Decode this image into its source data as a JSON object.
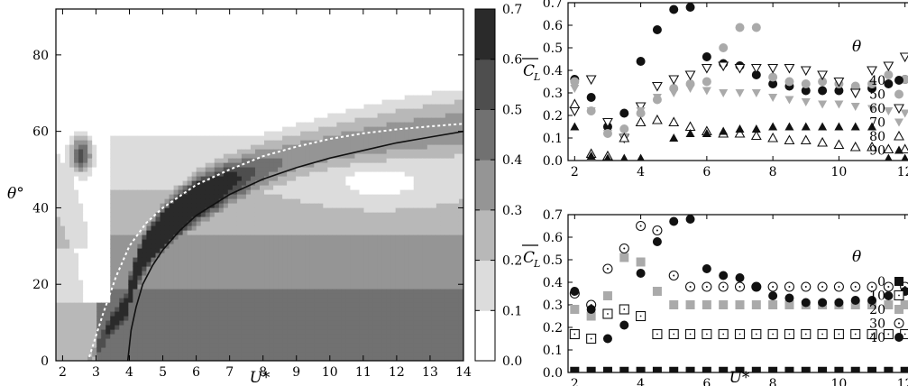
{
  "chart_data": [
    {
      "type": "heatmap",
      "xlabel": "U*",
      "ylabel": "θ°",
      "xlim": [
        1.8,
        14
      ],
      "ylim": [
        0,
        92
      ],
      "xticks": [
        "2",
        "3",
        "4",
        "5",
        "6",
        "7",
        "8",
        "9",
        "10",
        "11",
        "12",
        "13",
        "14"
      ],
      "yticks": [
        "0",
        "20",
        "40",
        "60",
        "80"
      ],
      "colorbar": {
        "ticks": [
          "0.0",
          "0.1",
          "0.2",
          "0.3",
          "0.4",
          "0.5",
          "0.6",
          "0.7"
        ],
        "range": [
          0,
          0.7
        ],
        "colormap": "gray (white = 0, black = 0.7)"
      },
      "curves": [
        {
          "style": "dashed-white",
          "x": [
            2.8,
            3.2,
            3.6,
            4.0,
            4.5,
            5.0,
            6.0,
            7.0,
            8.0,
            9.0,
            10.0,
            11.0,
            12.0,
            13.0,
            14.0
          ],
          "y": [
            1,
            12,
            22,
            30,
            36,
            40,
            46,
            50,
            53.5,
            56,
            58,
            59.5,
            60.5,
            61.3,
            62
          ]
        },
        {
          "style": "solid-black",
          "x": [
            3.95,
            4.05,
            4.2,
            4.4,
            4.7,
            5.0,
            5.5,
            6.0,
            7.0,
            8.0,
            9.0,
            10.0,
            11.0,
            12.0,
            13.0,
            14.0
          ],
          "y": [
            0,
            8,
            14,
            20,
            25,
            29,
            34,
            38,
            43.5,
            47.5,
            50.5,
            53,
            55,
            57,
            58.5,
            60
          ]
        }
      ]
    },
    {
      "type": "scatter",
      "ylabel": "C̄_L",
      "xlim": [
        1.8,
        12.2
      ],
      "ylim": [
        0,
        0.7
      ],
      "xticks": [
        "2",
        "4",
        "6",
        "8",
        "10",
        "12"
      ],
      "yticks": [
        "0.0",
        "0.1",
        "0.2",
        "0.3",
        "0.4",
        "0.5",
        "0.6",
        "0.7"
      ],
      "legend_title": "θ",
      "legend_position": "right",
      "series": [
        {
          "name": "40",
          "marker": "circle",
          "color": "#111111",
          "x": [
            2,
            2.5,
            3,
            3.5,
            4,
            4.5,
            5,
            5.5,
            6,
            6.5,
            7,
            7.5,
            8,
            8.5,
            9,
            9.5,
            10,
            10.5,
            11,
            11.5,
            12
          ],
          "y": [
            0.36,
            0.28,
            0.15,
            0.21,
            0.44,
            0.58,
            0.67,
            0.68,
            0.46,
            0.43,
            0.42,
            0.38,
            0.34,
            0.33,
            0.31,
            0.31,
            0.31,
            0.32,
            0.32,
            0.34,
            0.36
          ]
        },
        {
          "name": "50",
          "marker": "circle",
          "color": "#aaaaaa",
          "x": [
            2,
            2.5,
            3,
            3.5,
            4,
            4.5,
            5,
            5.5,
            6,
            6.5,
            7,
            7.5,
            8,
            8.5,
            9,
            9.5,
            10,
            10.5,
            11,
            11.5,
            12
          ],
          "y": [
            0.35,
            0.22,
            0.12,
            0.14,
            0.21,
            0.27,
            0.32,
            0.34,
            0.35,
            0.5,
            0.59,
            0.59,
            0.37,
            0.35,
            0.34,
            0.35,
            0.34,
            0.33,
            0.34,
            0.38,
            0.36
          ]
        },
        {
          "name": "60",
          "marker": "triangle-down-open",
          "color": "#111111",
          "x": [
            2,
            2.5,
            3,
            3.5,
            4,
            4.5,
            5,
            5.5,
            6,
            6.5,
            7,
            7.5,
            8,
            8.5,
            9,
            9.5,
            10,
            10.5,
            11,
            11.5,
            12
          ],
          "y": [
            0.22,
            0.36,
            0.17,
            0.1,
            0.24,
            0.33,
            0.36,
            0.38,
            0.41,
            0.42,
            0.41,
            0.41,
            0.41,
            0.41,
            0.4,
            0.38,
            0.35,
            0.3,
            0.4,
            0.42,
            0.46
          ]
        },
        {
          "name": "70",
          "marker": "triangle-down",
          "color": "#aaaaaa",
          "x": [
            2,
            2.5,
            3,
            3.5,
            4,
            4.5,
            5,
            5.5,
            6,
            6.5,
            7,
            7.5,
            8,
            8.5,
            9,
            9.5,
            10,
            10.5,
            11,
            11.5,
            12
          ],
          "y": [
            0.32,
            0.22,
            0.12,
            0.1,
            0.22,
            0.28,
            0.3,
            0.32,
            0.31,
            0.3,
            0.3,
            0.3,
            0.28,
            0.27,
            0.26,
            0.25,
            0.25,
            0.24,
            0.23,
            0.22,
            0.21
          ]
        },
        {
          "name": "80",
          "marker": "triangle-up-open",
          "color": "#111111",
          "x": [
            2,
            2.5,
            3,
            3.5,
            4,
            4.5,
            5,
            5.5,
            6,
            6.5,
            7,
            7.5,
            8,
            8.5,
            9,
            9.5,
            10,
            10.5,
            11,
            11.5,
            12
          ],
          "y": [
            0.25,
            0.03,
            0.02,
            0.1,
            0.17,
            0.18,
            0.17,
            0.15,
            0.13,
            0.12,
            0.12,
            0.11,
            0.1,
            0.09,
            0.09,
            0.08,
            0.07,
            0.06,
            0.06,
            0.05,
            0.05
          ]
        },
        {
          "name": "90",
          "marker": "triangle-up",
          "color": "#111111",
          "x": [
            2,
            2.5,
            3,
            3.5,
            4,
            5,
            5.5,
            6,
            6.5,
            7,
            7.5,
            8,
            8.5,
            9,
            9.5,
            10,
            10.5,
            11,
            11.5,
            12
          ],
          "y": [
            0.15,
            0.02,
            0.01,
            0.01,
            0.01,
            0.1,
            0.12,
            0.12,
            0.13,
            0.14,
            0.14,
            0.15,
            0.15,
            0.15,
            0.15,
            0.15,
            0.15,
            0.15,
            0.01,
            0.01
          ]
        }
      ]
    },
    {
      "type": "scatter",
      "xlabel": "U*",
      "ylabel": "C̄_L",
      "xlim": [
        1.8,
        12.2
      ],
      "ylim": [
        0,
        0.7
      ],
      "xticks": [
        "2",
        "4",
        "6",
        "8",
        "10",
        "12"
      ],
      "yticks": [
        "0.0",
        "0.1",
        "0.2",
        "0.3",
        "0.4",
        "0.5",
        "0.6",
        "0.7"
      ],
      "legend_title": "θ",
      "legend_position": "right",
      "series": [
        {
          "name": "0",
          "marker": "square",
          "color": "#111111",
          "x": [
            2,
            2.5,
            3,
            3.5,
            4,
            4.5,
            5,
            5.5,
            6,
            6.5,
            7,
            7.5,
            8,
            8.5,
            9,
            9.5,
            10,
            10.5,
            11,
            11.5,
            12
          ],
          "y": [
            0.005,
            0.005,
            0.005,
            0.005,
            0.005,
            0.005,
            0.005,
            0.005,
            0.005,
            0.005,
            0.005,
            0.005,
            0.005,
            0.005,
            0.005,
            0.005,
            0.005,
            0.005,
            0.005,
            0.005,
            0.005
          ]
        },
        {
          "name": "10",
          "marker": "square-dot",
          "color": "#111111",
          "x": [
            2,
            2.5,
            3,
            3.5,
            4,
            4.5,
            5,
            5.5,
            6,
            6.5,
            7,
            7.5,
            8,
            8.5,
            9,
            9.5,
            10,
            10.5,
            11,
            11.5,
            12
          ],
          "y": [
            0.17,
            0.15,
            0.26,
            0.28,
            0.25,
            0.17,
            0.17,
            0.17,
            0.17,
            0.17,
            0.17,
            0.17,
            0.17,
            0.17,
            0.17,
            0.17,
            0.17,
            0.17,
            0.17,
            0.17,
            0.17
          ]
        },
        {
          "name": "20",
          "marker": "square",
          "color": "#aaaaaa",
          "x": [
            2,
            2.5,
            3,
            3.5,
            4,
            4.5,
            5,
            5.5,
            6,
            6.5,
            7,
            7.5,
            8,
            8.5,
            9,
            9.5,
            10,
            10.5,
            11,
            11.5,
            12
          ],
          "y": [
            0.28,
            0.25,
            0.34,
            0.51,
            0.49,
            0.36,
            0.3,
            0.3,
            0.3,
            0.3,
            0.3,
            0.3,
            0.3,
            0.3,
            0.3,
            0.3,
            0.3,
            0.3,
            0.3,
            0.3,
            0.3
          ]
        },
        {
          "name": "30",
          "marker": "circle-dot",
          "color": "#111111",
          "x": [
            2,
            2.5,
            3,
            3.5,
            4,
            4.5,
            5,
            5.5,
            6,
            6.5,
            7,
            7.5,
            8,
            8.5,
            9,
            9.5,
            10,
            10.5,
            11,
            11.5,
            12
          ],
          "y": [
            0.35,
            0.3,
            0.46,
            0.55,
            0.65,
            0.63,
            0.43,
            0.38,
            0.38,
            0.38,
            0.38,
            0.38,
            0.38,
            0.38,
            0.38,
            0.38,
            0.38,
            0.38,
            0.38,
            0.38,
            0.38
          ]
        },
        {
          "name": "40",
          "marker": "circle",
          "color": "#111111",
          "x": [
            2,
            2.5,
            3,
            3.5,
            4,
            4.5,
            5,
            5.5,
            6,
            6.5,
            7,
            7.5,
            8,
            8.5,
            9,
            9.5,
            10,
            10.5,
            11,
            11.5,
            12
          ],
          "y": [
            0.36,
            0.28,
            0.15,
            0.21,
            0.44,
            0.58,
            0.67,
            0.68,
            0.46,
            0.43,
            0.42,
            0.38,
            0.34,
            0.33,
            0.31,
            0.31,
            0.31,
            0.32,
            0.32,
            0.34,
            0.36
          ]
        }
      ]
    }
  ]
}
